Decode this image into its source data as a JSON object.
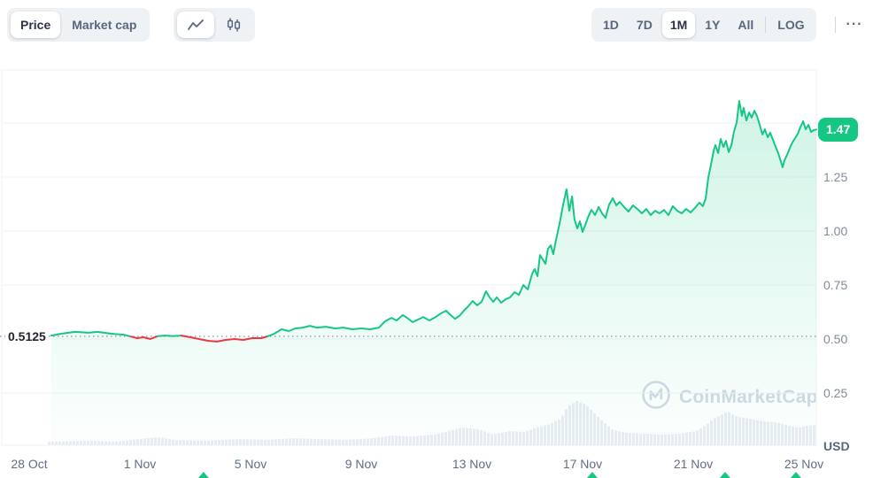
{
  "header": {
    "metric_toggle": {
      "options": [
        "Price",
        "Market cap"
      ],
      "selected_index": 0
    },
    "chart_type_toggle": {
      "options": [
        {
          "icon": "line-chart-icon"
        },
        {
          "icon": "candlestick-icon"
        }
      ],
      "selected_index": 0
    },
    "range_toggle": {
      "options": [
        "1D",
        "7D",
        "1M",
        "1Y",
        "All"
      ],
      "selected": "1M",
      "log_label": "LOG",
      "more_label": "···"
    }
  },
  "open_label": "0.5125",
  "price_badge": "1.47",
  "axes": {
    "y_unit": "USD"
  },
  "watermark": "CoinMarketCap",
  "chart_data": {
    "type": "area",
    "title": "Price, 1M range",
    "xlabel": "",
    "ylabel": "USD",
    "x_unit": "days since 28 Oct",
    "x_tick_days": [
      0,
      4,
      8,
      12,
      16,
      20,
      24,
      28
    ],
    "x_tick_labels": [
      "28 Oct",
      "1 Nov",
      "5 Nov",
      "9 Nov",
      "13 Nov",
      "17 Nov",
      "21 Nov",
      "25 Nov"
    ],
    "y_ticks": [
      1.25,
      1.0,
      0.75,
      0.5,
      0.25
    ],
    "grid_ticks": [
      1.5,
      1.25,
      1.0,
      0.75,
      0.5,
      0.25
    ],
    "open_price": 0.5125,
    "last_price": 1.47,
    "legend": [],
    "grid": true,
    "colors": {
      "up": "#16c784",
      "down": "#ea3943",
      "fill_top": "rgba(22,199,132,0.20)",
      "fill_bottom": "rgba(22,199,132,0.01)",
      "volume": "#e9edf3",
      "grid": "#f0f2f5",
      "dotted": "#8f99ad",
      "badge": "#16c784"
    },
    "points": [
      [
        0.8,
        0.516
      ],
      [
        1.18,
        0.525
      ],
      [
        1.66,
        0.533
      ],
      [
        2.14,
        0.529
      ],
      [
        2.46,
        0.533
      ],
      [
        2.94,
        0.525
      ],
      [
        3.42,
        0.52
      ],
      [
        3.68,
        0.511
      ],
      [
        3.9,
        0.504
      ],
      [
        4.13,
        0.508
      ],
      [
        4.38,
        0.5
      ],
      [
        4.64,
        0.513
      ],
      [
        4.9,
        0.516
      ],
      [
        5.18,
        0.514
      ],
      [
        5.5,
        0.516
      ],
      [
        5.82,
        0.508
      ],
      [
        6.14,
        0.5
      ],
      [
        6.46,
        0.492
      ],
      [
        6.78,
        0.488
      ],
      [
        7.1,
        0.496
      ],
      [
        7.42,
        0.5
      ],
      [
        7.74,
        0.496
      ],
      [
        8.06,
        0.504
      ],
      [
        8.38,
        0.504
      ],
      [
        8.61,
        0.512
      ],
      [
        8.86,
        0.525
      ],
      [
        9.12,
        0.545
      ],
      [
        9.38,
        0.537
      ],
      [
        9.63,
        0.549
      ],
      [
        9.89,
        0.553
      ],
      [
        10.14,
        0.561
      ],
      [
        10.4,
        0.553
      ],
      [
        10.72,
        0.557
      ],
      [
        11.04,
        0.549
      ],
      [
        11.36,
        0.553
      ],
      [
        11.68,
        0.545
      ],
      [
        12.0,
        0.549
      ],
      [
        12.32,
        0.545
      ],
      [
        12.64,
        0.553
      ],
      [
        12.86,
        0.582
      ],
      [
        13.09,
        0.598
      ],
      [
        13.28,
        0.586
      ],
      [
        13.5,
        0.611
      ],
      [
        13.7,
        0.594
      ],
      [
        13.86,
        0.578
      ],
      [
        14.05,
        0.59
      ],
      [
        14.24,
        0.602
      ],
      [
        14.46,
        0.586
      ],
      [
        14.69,
        0.602
      ],
      [
        14.88,
        0.619
      ],
      [
        15.07,
        0.631
      ],
      [
        15.23,
        0.611
      ],
      [
        15.39,
        0.594
      ],
      [
        15.55,
        0.607
      ],
      [
        15.71,
        0.631
      ],
      [
        15.87,
        0.652
      ],
      [
        16.03,
        0.676
      ],
      [
        16.19,
        0.656
      ],
      [
        16.35,
        0.672
      ],
      [
        16.51,
        0.721
      ],
      [
        16.64,
        0.693
      ],
      [
        16.77,
        0.672
      ],
      [
        16.9,
        0.693
      ],
      [
        17.06,
        0.668
      ],
      [
        17.22,
        0.684
      ],
      [
        17.38,
        0.693
      ],
      [
        17.54,
        0.717
      ],
      [
        17.7,
        0.705
      ],
      [
        17.86,
        0.75
      ],
      [
        18.02,
        0.73
      ],
      [
        18.18,
        0.803
      ],
      [
        18.27,
        0.824
      ],
      [
        18.37,
        0.791
      ],
      [
        18.46,
        0.889
      ],
      [
        18.56,
        0.869
      ],
      [
        18.66,
        0.848
      ],
      [
        18.75,
        0.918
      ],
      [
        18.85,
        0.934
      ],
      [
        18.94,
        0.893
      ],
      [
        19.04,
        0.959
      ],
      [
        19.17,
        1.037
      ],
      [
        19.3,
        1.123
      ],
      [
        19.42,
        1.193
      ],
      [
        19.52,
        1.094
      ],
      [
        19.62,
        1.16
      ],
      [
        19.71,
        1.053
      ],
      [
        19.81,
        1.012
      ],
      [
        19.9,
        1.045
      ],
      [
        20.0,
        0.996
      ],
      [
        20.1,
        1.029
      ],
      [
        20.19,
        1.061
      ],
      [
        20.32,
        1.098
      ],
      [
        20.45,
        1.074
      ],
      [
        20.58,
        1.111
      ],
      [
        20.7,
        1.082
      ],
      [
        20.83,
        1.061
      ],
      [
        20.96,
        1.123
      ],
      [
        21.09,
        1.152
      ],
      [
        21.22,
        1.119
      ],
      [
        21.34,
        1.135
      ],
      [
        21.5,
        1.111
      ],
      [
        21.66,
        1.09
      ],
      [
        21.82,
        1.119
      ],
      [
        21.98,
        1.102
      ],
      [
        22.14,
        1.082
      ],
      [
        22.3,
        1.102
      ],
      [
        22.46,
        1.074
      ],
      [
        22.62,
        1.094
      ],
      [
        22.78,
        1.082
      ],
      [
        22.94,
        1.098
      ],
      [
        23.1,
        1.074
      ],
      [
        23.26,
        1.115
      ],
      [
        23.42,
        1.094
      ],
      [
        23.58,
        1.082
      ],
      [
        23.74,
        1.102
      ],
      [
        23.9,
        1.086
      ],
      [
        24.06,
        1.107
      ],
      [
        24.22,
        1.131
      ],
      [
        24.35,
        1.115
      ],
      [
        24.45,
        1.152
      ],
      [
        24.54,
        1.246
      ],
      [
        24.64,
        1.307
      ],
      [
        24.74,
        1.373
      ],
      [
        24.8,
        1.398
      ],
      [
        24.9,
        1.361
      ],
      [
        24.99,
        1.426
      ],
      [
        25.09,
        1.389
      ],
      [
        25.18,
        1.418
      ],
      [
        25.28,
        1.365
      ],
      [
        25.38,
        1.398
      ],
      [
        25.47,
        1.459
      ],
      [
        25.57,
        1.504
      ],
      [
        25.66,
        1.602
      ],
      [
        25.76,
        1.533
      ],
      [
        25.82,
        1.57
      ],
      [
        25.92,
        1.512
      ],
      [
        26.02,
        1.549
      ],
      [
        26.11,
        1.525
      ],
      [
        26.21,
        1.557
      ],
      [
        26.3,
        1.533
      ],
      [
        26.4,
        1.492
      ],
      [
        26.5,
        1.447
      ],
      [
        26.59,
        1.471
      ],
      [
        26.69,
        1.434
      ],
      [
        26.78,
        1.455
      ],
      [
        26.88,
        1.422
      ],
      [
        26.98,
        1.389
      ],
      [
        27.07,
        1.361
      ],
      [
        27.17,
        1.32
      ],
      [
        27.23,
        1.295
      ],
      [
        27.3,
        1.328
      ],
      [
        27.39,
        1.352
      ],
      [
        27.49,
        1.385
      ],
      [
        27.58,
        1.41
      ],
      [
        27.68,
        1.43
      ],
      [
        27.78,
        1.451
      ],
      [
        27.87,
        1.48
      ],
      [
        27.97,
        1.508
      ],
      [
        28.06,
        1.471
      ],
      [
        28.16,
        1.492
      ],
      [
        28.26,
        1.459
      ],
      [
        28.35,
        1.467
      ],
      [
        28.45,
        1.47
      ]
    ],
    "volume_unit": "relative",
    "volume_profile": [
      [
        0.7,
        4
      ],
      [
        2.14,
        5
      ],
      [
        3.1,
        4
      ],
      [
        4.22,
        8
      ],
      [
        4.7,
        9
      ],
      [
        5.18,
        6
      ],
      [
        6.3,
        5
      ],
      [
        7.58,
        7
      ],
      [
        8.54,
        6
      ],
      [
        9.5,
        8
      ],
      [
        10.46,
        7
      ],
      [
        11.42,
        6
      ],
      [
        12.38,
        8
      ],
      [
        13.02,
        11
      ],
      [
        13.82,
        10
      ],
      [
        14.62,
        12
      ],
      [
        15.1,
        16
      ],
      [
        15.58,
        20
      ],
      [
        16.22,
        18
      ],
      [
        16.7,
        12
      ],
      [
        17.34,
        16
      ],
      [
        17.82,
        15
      ],
      [
        18.3,
        20
      ],
      [
        18.78,
        24
      ],
      [
        19.17,
        30
      ],
      [
        19.42,
        44
      ],
      [
        19.74,
        50
      ],
      [
        20.06,
        46
      ],
      [
        20.32,
        38
      ],
      [
        20.64,
        28
      ],
      [
        21.02,
        18
      ],
      [
        21.5,
        14
      ],
      [
        22.14,
        13
      ],
      [
        22.78,
        12
      ],
      [
        23.42,
        13
      ],
      [
        24.06,
        16
      ],
      [
        24.38,
        22
      ],
      [
        24.7,
        30
      ],
      [
        25.18,
        38
      ],
      [
        25.57,
        32
      ],
      [
        25.98,
        30
      ],
      [
        26.46,
        27
      ],
      [
        26.94,
        26
      ],
      [
        27.42,
        22
      ],
      [
        27.74,
        20
      ],
      [
        28.06,
        22
      ],
      [
        28.45,
        23
      ]
    ],
    "event_marker_days": [
      6.3,
      20.35,
      25.15,
      27.71
    ]
  }
}
